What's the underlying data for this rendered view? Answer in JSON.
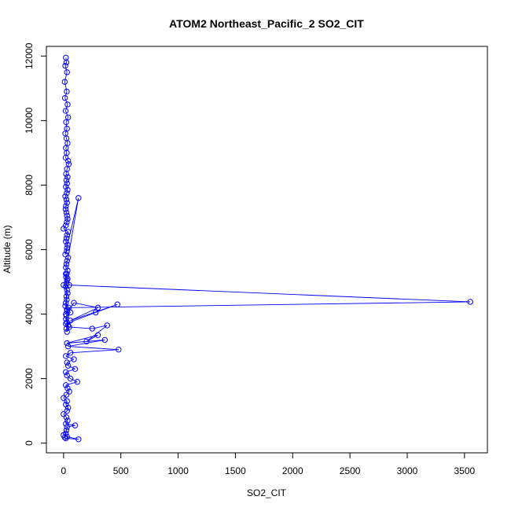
{
  "chart_data": {
    "type": "line",
    "title": "ATOM2 Northeast_Pacific_2 SO2_CIT",
    "xlabel": "SO2_CIT",
    "ylabel": "Altitude (m)",
    "xlim": [
      -150,
      3700
    ],
    "ylim": [
      -300,
      12300
    ],
    "x_ticks": [
      0,
      500,
      1000,
      1500,
      2000,
      2500,
      3000,
      3500
    ],
    "y_ticks": [
      0,
      2000,
      4000,
      6000,
      8000,
      10000,
      12000
    ],
    "series_color": "#0000ff",
    "marker": "open-circle",
    "series": [
      {
        "x": [
          20,
          25,
          15,
          30,
          10,
          28,
          12,
          35,
          18,
          40,
          22,
          30,
          15,
          25,
          35,
          20,
          28,
          18,
          40,
          45,
          30,
          22,
          35,
          25,
          30,
          20,
          35,
          28,
          15,
          25,
          30,
          20,
          18,
          25,
          30,
          35,
          28,
          20,
          0,
          40,
          30,
          25,
          20,
          35,
          30,
          28,
          15,
          130,
          40,
          30,
          25,
          20,
          35,
          28,
          22,
          30,
          25,
          0,
          20,
          30,
          35,
          25,
          28,
          20,
          15,
          30,
          60,
          25,
          20,
          30,
          40,
          25,
          30,
          20,
          35,
          50,
          3550,
          45,
          30,
          20,
          90,
          300,
          60,
          470,
          280,
          20,
          50,
          250,
          380,
          200,
          300,
          30,
          360,
          40,
          480,
          60,
          20,
          90,
          30,
          40,
          100,
          20,
          30,
          60,
          120,
          20,
          35,
          50,
          25,
          0,
          30,
          20,
          40,
          30,
          0,
          25,
          35,
          20,
          100,
          30,
          25,
          20,
          0,
          30,
          130,
          20,
          10
        ],
        "y": [
          11950,
          11800,
          11700,
          11500,
          11200,
          10900,
          10700,
          10500,
          10300,
          10100,
          9950,
          9750,
          9600,
          9450,
          9300,
          9150,
          9000,
          8850,
          8750,
          8650,
          8500,
          8350,
          8250,
          8150,
          8050,
          7950,
          7850,
          7750,
          7650,
          7550,
          7450,
          7350,
          7250,
          7150,
          7050,
          6950,
          6850,
          6750,
          6650,
          6550,
          6450,
          6350,
          6250,
          6150,
          6050,
          5950,
          5850,
          7600,
          5750,
          5650,
          5550,
          5450,
          5350,
          5250,
          5150,
          5050,
          4950,
          4900,
          4850,
          4750,
          4650,
          4550,
          4450,
          4350,
          4250,
          4150,
          4050,
          3950,
          3850,
          3750,
          3650,
          3550,
          3450,
          5250,
          5100,
          4900,
          4380,
          4200,
          4100,
          4000,
          4350,
          4200,
          3800,
          4300,
          4050,
          3700,
          3600,
          3550,
          3650,
          3150,
          3350,
          3100,
          3200,
          3000,
          2900,
          2800,
          2700,
          2600,
          2500,
          2400,
          2300,
          2200,
          2100,
          2000,
          1900,
          1800,
          1700,
          1600,
          1500,
          1400,
          1300,
          1200,
          1100,
          1000,
          900,
          800,
          700,
          600,
          550,
          500,
          400,
          300,
          250,
          200,
          120,
          150,
          180
        ]
      }
    ]
  }
}
